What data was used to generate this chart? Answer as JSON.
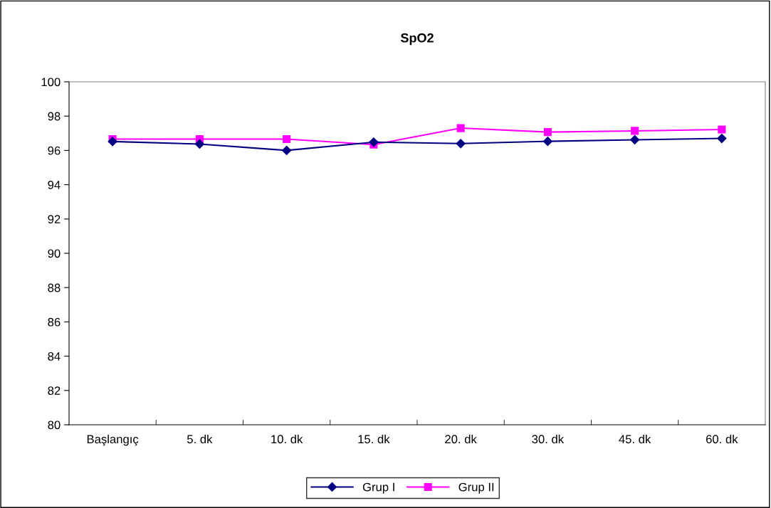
{
  "chart_data": {
    "type": "line",
    "title": "SpO2",
    "categories": [
      "Başlangıç",
      "5. dk",
      "10. dk",
      "15. dk",
      "20. dk",
      "30. dk",
      "45. dk",
      "60. dk"
    ],
    "series": [
      {
        "name": "Grup I",
        "color": "#000080",
        "marker": "diamond",
        "values": [
          96.52,
          96.37,
          96.0,
          96.48,
          96.4,
          96.53,
          96.62,
          96.7
        ]
      },
      {
        "name": "Grup II",
        "color": "#ff00ff",
        "marker": "square",
        "values": [
          96.66,
          96.66,
          96.66,
          96.34,
          97.3,
          97.07,
          97.14,
          97.22
        ]
      }
    ],
    "ylim": [
      80,
      100
    ],
    "yticks": [
      80,
      82,
      84,
      86,
      88,
      90,
      92,
      94,
      96,
      98,
      100
    ],
    "grid": false,
    "legend": "bottom",
    "line_style": "solid"
  }
}
